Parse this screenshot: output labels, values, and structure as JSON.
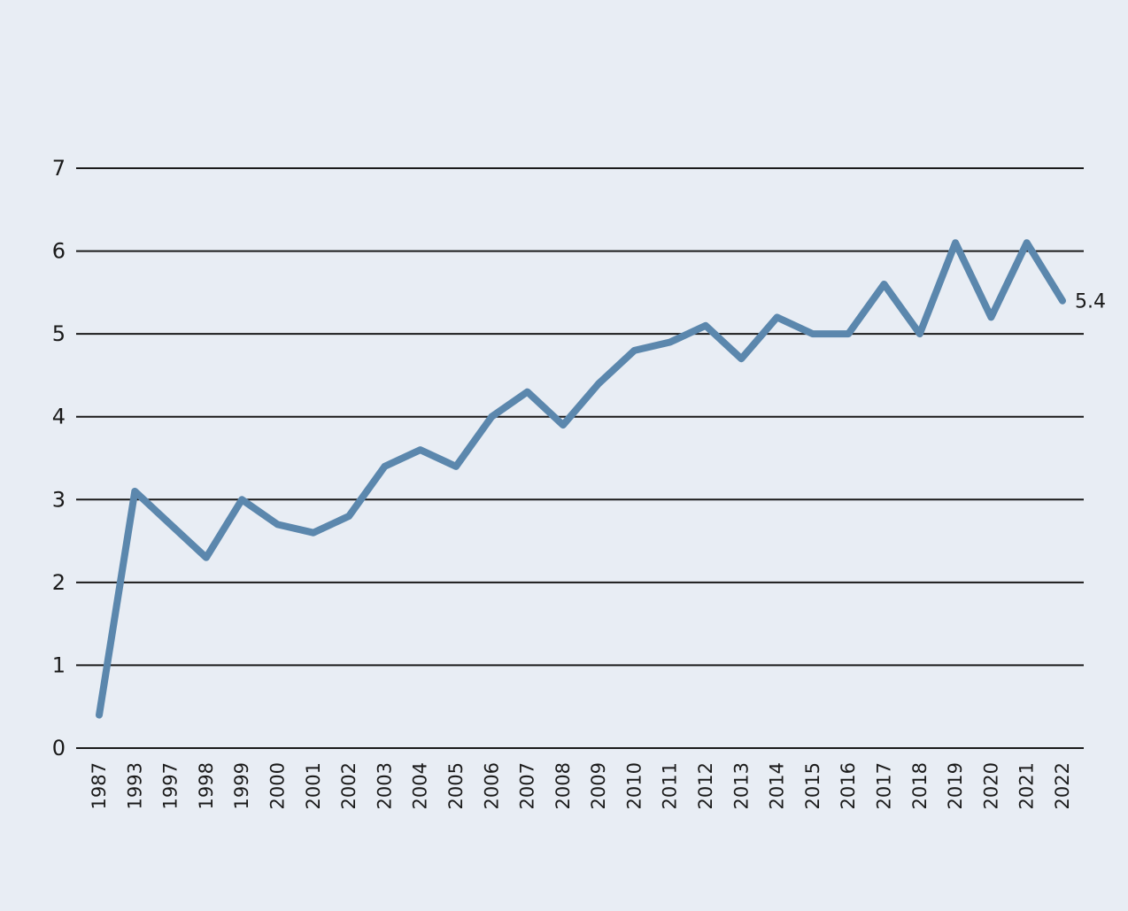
{
  "chart_data": {
    "type": "line",
    "x": [
      "1987",
      "1993",
      "1997",
      "1998",
      "1999",
      "2000",
      "2001",
      "2002",
      "2003",
      "2004",
      "2005",
      "2006",
      "2007",
      "2008",
      "2009",
      "2010",
      "2011",
      "2012",
      "2013",
      "2014",
      "2015",
      "2016",
      "2017",
      "2018",
      "2019",
      "2020",
      "2021",
      "2022"
    ],
    "series": [
      {
        "values": [
          0.4,
          3.1,
          2.7,
          2.3,
          3.0,
          2.7,
          2.6,
          2.8,
          3.4,
          3.6,
          3.4,
          4.0,
          4.3,
          3.9,
          4.4,
          4.8,
          4.9,
          5.1,
          4.7,
          5.2,
          5.0,
          5.0,
          5.6,
          5.0,
          6.1,
          5.2,
          6.1,
          5.4
        ],
        "color": "#5b87ad"
      }
    ],
    "yticks": [
      "0",
      "1",
      "2",
      "3",
      "4",
      "5",
      "6",
      "7"
    ],
    "ylim": [
      0,
      7
    ],
    "grid": true,
    "title": "",
    "xlabel": "",
    "ylabel": "",
    "end_label": "5.4"
  }
}
